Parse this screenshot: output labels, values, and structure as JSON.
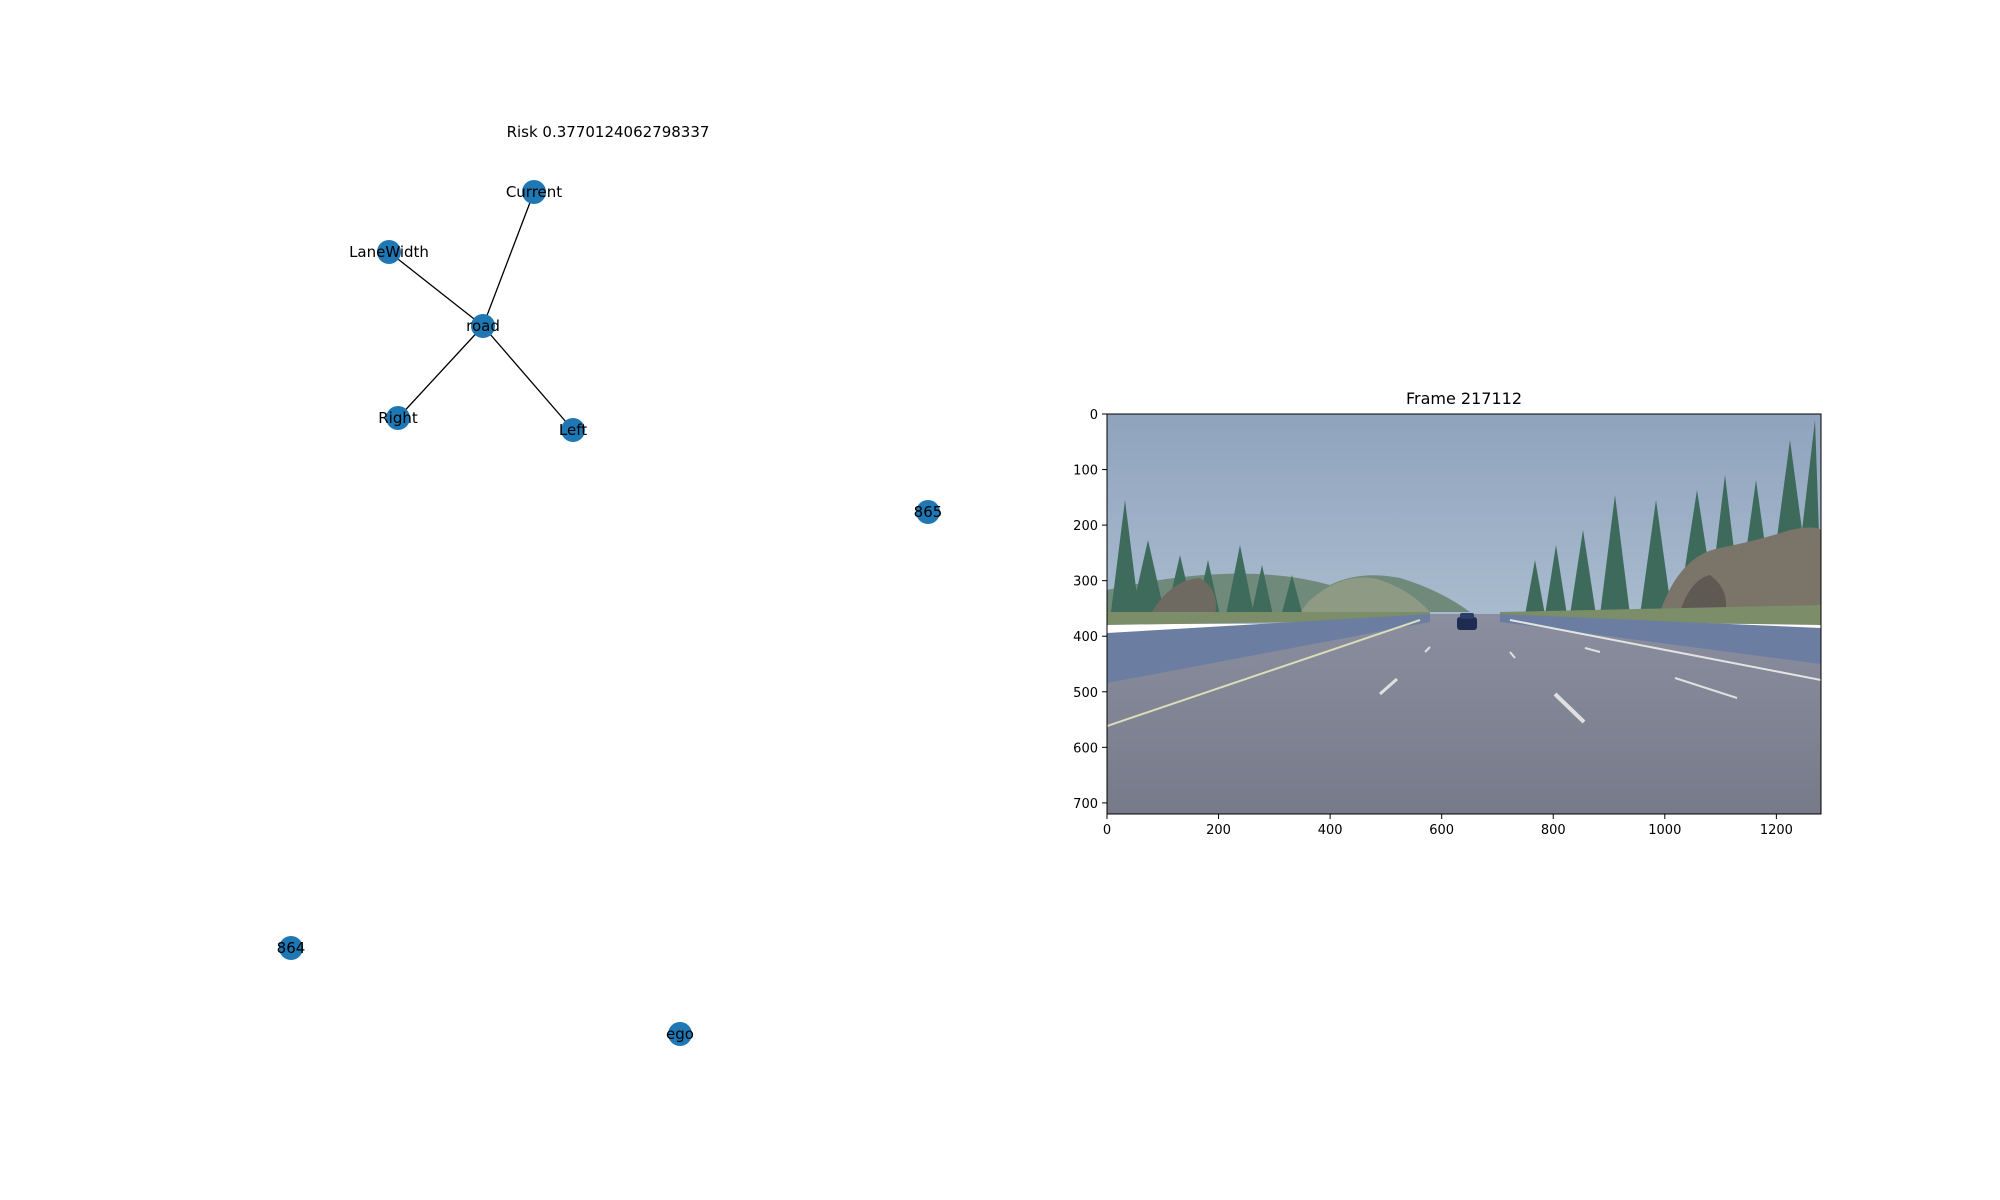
{
  "graph": {
    "title": "Risk 0.3770124062798337",
    "node_color": "#1f77b4",
    "edge_color": "#000000",
    "nodes": [
      {
        "id": "Current",
        "label": "Current"
      },
      {
        "id": "LaneWidth",
        "label": "LaneWidth"
      },
      {
        "id": "road",
        "label": "road"
      },
      {
        "id": "Right",
        "label": "Right"
      },
      {
        "id": "Left",
        "label": "Left"
      },
      {
        "id": "865",
        "label": "865"
      },
      {
        "id": "864",
        "label": "864"
      },
      {
        "id": "ego",
        "label": "ego"
      }
    ],
    "edges": [
      {
        "source": "road",
        "target": "Current"
      },
      {
        "source": "road",
        "target": "LaneWidth"
      },
      {
        "source": "road",
        "target": "Right"
      },
      {
        "source": "road",
        "target": "Left"
      }
    ]
  },
  "frame_panel": {
    "title": "Frame 217112",
    "image_description_icon": "driving-scene-image",
    "x_ticks": [
      "0",
      "200",
      "400",
      "600",
      "800",
      "1000",
      "1200"
    ],
    "y_ticks": [
      "0",
      "100",
      "200",
      "300",
      "400",
      "500",
      "600",
      "700"
    ],
    "x_tick_values": [
      0,
      200,
      400,
      600,
      800,
      1000,
      1200
    ],
    "y_tick_values": [
      0,
      100,
      200,
      300,
      400,
      500,
      600,
      700
    ],
    "x_range": [
      0,
      1280
    ],
    "y_range": [
      0,
      720
    ]
  }
}
